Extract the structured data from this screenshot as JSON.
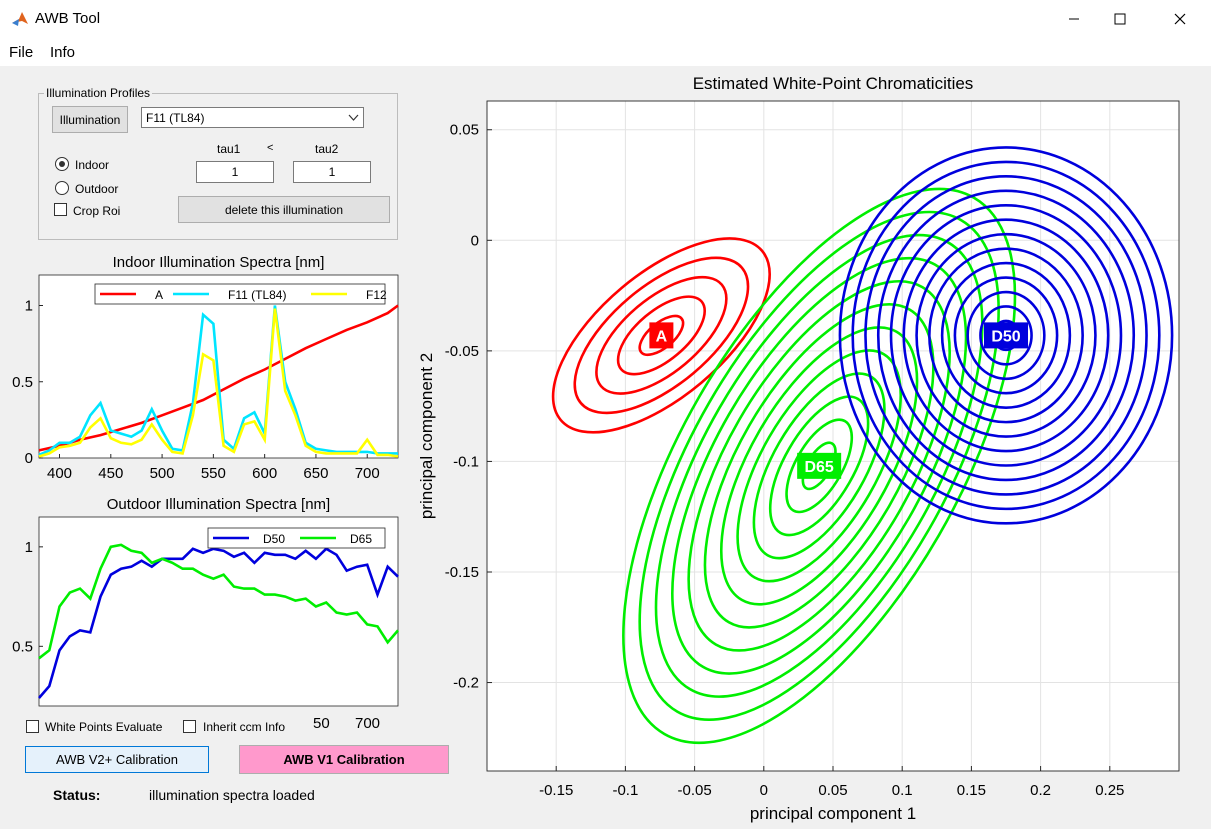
{
  "window": {
    "title": "AWB Tool",
    "icons": {
      "app": "matlab-icon",
      "minimize": "minimize-icon",
      "maximize": "maximize-icon",
      "close": "close-icon"
    }
  },
  "menu": {
    "file": "File",
    "info": "Info"
  },
  "profiles": {
    "group_title": "Illumination Profiles",
    "illumination_button": "Illumination",
    "selected": "F11 (TL84)",
    "indoor_label": "Indoor",
    "outdoor_label": "Outdoor",
    "selected_mode": "Indoor",
    "crop_roi_label": "Crop Roi",
    "crop_roi_checked": false,
    "tau1_label": "tau1",
    "relation": "<",
    "tau2_label": "tau2",
    "tau1_value": "1",
    "tau2_value": "1",
    "delete_button": "delete this illumination"
  },
  "bottom": {
    "wp_evaluate_label": "White Points Evaluate",
    "wp_evaluate_checked": false,
    "inherit_ccm_label": "Inherit ccm Info",
    "inherit_ccm_checked": false,
    "v2_button": "AWB V2+ Calibration",
    "v1_button": "AWB V1 Calibration",
    "v1_color": "#ff99cc",
    "status_label": "Status:",
    "status_text": "illumination spectra loaded",
    "stray_ticks": [
      "50",
      "700"
    ]
  },
  "chart_data": [
    {
      "type": "line",
      "title": "Indoor Illumination Spectra [nm]",
      "xlim": [
        380,
        730
      ],
      "ylim": [
        0,
        1.2
      ],
      "xticks": [
        400,
        450,
        500,
        550,
        600,
        650,
        700
      ],
      "yticks": [
        0,
        0.5,
        1
      ],
      "ytick_labels": [
        "0",
        "0.5",
        "1"
      ],
      "legend_position": "top",
      "grid": false,
      "series": [
        {
          "name": "A",
          "color": "#ff0000",
          "x": [
            380,
            400,
            420,
            440,
            460,
            480,
            500,
            520,
            540,
            560,
            580,
            600,
            620,
            640,
            660,
            680,
            700,
            720,
            730
          ],
          "y": [
            0.05,
            0.08,
            0.12,
            0.15,
            0.19,
            0.23,
            0.28,
            0.33,
            0.38,
            0.45,
            0.52,
            0.58,
            0.65,
            0.72,
            0.78,
            0.84,
            0.89,
            0.95,
            1.0
          ]
        },
        {
          "name": "F11 (TL84)",
          "color": "#00e5ff",
          "x": [
            380,
            390,
            400,
            410,
            420,
            430,
            440,
            450,
            460,
            470,
            480,
            490,
            500,
            510,
            520,
            530,
            540,
            550,
            560,
            570,
            580,
            590,
            600,
            610,
            620,
            630,
            640,
            650,
            660,
            670,
            680,
            690,
            700,
            710,
            720,
            730
          ],
          "y": [
            0.02,
            0.05,
            0.1,
            0.1,
            0.14,
            0.28,
            0.36,
            0.18,
            0.16,
            0.14,
            0.18,
            0.32,
            0.18,
            0.06,
            0.05,
            0.36,
            0.94,
            0.88,
            0.12,
            0.06,
            0.26,
            0.3,
            0.16,
            1.0,
            0.5,
            0.32,
            0.1,
            0.06,
            0.05,
            0.04,
            0.04,
            0.04,
            0.04,
            0.03,
            0.03,
            0.03
          ]
        },
        {
          "name": "F12",
          "color": "#ffff00",
          "x": [
            380,
            390,
            400,
            410,
            420,
            430,
            440,
            450,
            460,
            470,
            480,
            490,
            500,
            510,
            520,
            530,
            540,
            550,
            560,
            570,
            580,
            590,
            600,
            610,
            620,
            630,
            640,
            650,
            660,
            670,
            680,
            690,
            700,
            710,
            720,
            730
          ],
          "y": [
            0.01,
            0.03,
            0.07,
            0.08,
            0.1,
            0.2,
            0.26,
            0.13,
            0.1,
            0.09,
            0.12,
            0.22,
            0.12,
            0.04,
            0.03,
            0.28,
            0.68,
            0.64,
            0.08,
            0.04,
            0.22,
            0.24,
            0.12,
            0.98,
            0.44,
            0.28,
            0.08,
            0.04,
            0.03,
            0.03,
            0.03,
            0.03,
            0.12,
            0.02,
            0.02,
            0.01
          ]
        }
      ]
    },
    {
      "type": "line",
      "title": "Outdoor Illumination Spectra [nm]",
      "xlim": [
        380,
        730
      ],
      "ylim": [
        0.2,
        1.15
      ],
      "yticks": [
        0.5,
        1
      ],
      "ytick_labels": [
        "0.5",
        "1"
      ],
      "legend_position": "top-right",
      "grid": false,
      "series": [
        {
          "name": "D50",
          "color": "#0000dd",
          "x": [
            380,
            390,
            400,
            410,
            420,
            430,
            440,
            450,
            460,
            470,
            480,
            490,
            500,
            510,
            520,
            530,
            540,
            550,
            560,
            570,
            580,
            590,
            600,
            610,
            620,
            630,
            640,
            650,
            660,
            670,
            680,
            690,
            700,
            710,
            720,
            730
          ],
          "y": [
            0.24,
            0.3,
            0.48,
            0.55,
            0.58,
            0.57,
            0.75,
            0.86,
            0.89,
            0.9,
            0.93,
            0.9,
            0.94,
            0.94,
            0.94,
            0.99,
            0.97,
            0.99,
            0.98,
            0.95,
            0.97,
            0.92,
            0.97,
            0.96,
            0.96,
            0.94,
            0.98,
            0.94,
            0.99,
            0.96,
            0.88,
            0.9,
            0.91,
            0.76,
            0.9,
            0.85
          ]
        },
        {
          "name": "D65",
          "color": "#00ee00",
          "x": [
            380,
            390,
            400,
            410,
            420,
            430,
            440,
            450,
            460,
            470,
            480,
            490,
            500,
            510,
            520,
            530,
            540,
            550,
            560,
            570,
            580,
            590,
            600,
            610,
            620,
            630,
            640,
            650,
            660,
            670,
            680,
            690,
            700,
            710,
            720,
            730
          ],
          "y": [
            0.44,
            0.48,
            0.7,
            0.77,
            0.79,
            0.74,
            0.89,
            1.0,
            1.01,
            0.98,
            0.97,
            0.92,
            0.94,
            0.92,
            0.89,
            0.89,
            0.86,
            0.84,
            0.86,
            0.8,
            0.79,
            0.79,
            0.76,
            0.76,
            0.75,
            0.73,
            0.74,
            0.7,
            0.72,
            0.67,
            0.66,
            0.67,
            0.61,
            0.6,
            0.52,
            0.58
          ]
        }
      ]
    },
    {
      "type": "contour",
      "title": "Estimated White-Point Chromaticities",
      "xlabel": "principal component 1",
      "ylabel": "principal component 2",
      "xlim": [
        -0.2,
        0.3
      ],
      "ylim": [
        -0.24,
        0.063
      ],
      "xticks": [
        -0.15,
        -0.1,
        -0.05,
        0,
        0.05,
        0.1,
        0.15,
        0.2,
        0.25
      ],
      "xtick_labels": [
        "-0.15",
        "-0.1",
        "-0.05",
        "0",
        "0.05",
        "0.1",
        "0.15",
        "0.2",
        "0.25"
      ],
      "yticks": [
        0.05,
        0,
        -0.05,
        -0.1,
        -0.15,
        -0.2
      ],
      "ytick_labels": [
        "0.05",
        "0",
        "-0.05",
        "-0.1",
        "-0.15",
        "-0.2"
      ],
      "grid": true,
      "series": [
        {
          "name": "A",
          "color": "#ff0000",
          "center": [
            -0.074,
            -0.043
          ],
          "semi_axes": [
            0.095,
            0.028
          ],
          "angle_deg": -40,
          "levels": 5
        },
        {
          "name": "D65",
          "color": "#00ee00",
          "center": [
            0.04,
            -0.102
          ],
          "semi_axes": [
            0.1,
            0.14
          ],
          "angle_deg": 30,
          "levels": 12
        },
        {
          "name": "D50",
          "color": "#0000dd",
          "center": [
            0.175,
            -0.043
          ],
          "semi_axes": [
            0.12,
            0.085
          ],
          "angle_deg": 0,
          "levels": 13
        }
      ]
    }
  ]
}
